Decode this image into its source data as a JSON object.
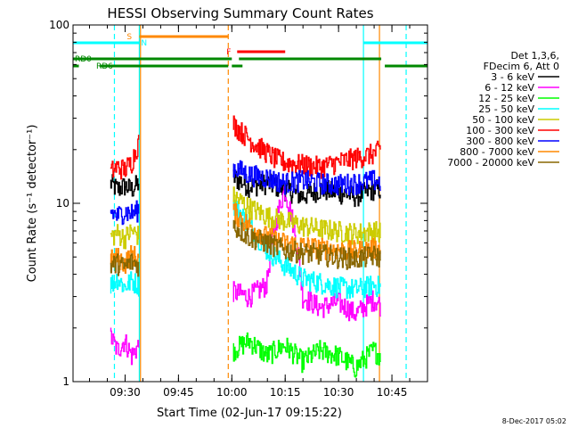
{
  "chart_data": {
    "type": "line",
    "title": "HESSI Observing Summary Count Rates",
    "ylabel": "Count Rate (s⁻¹ detector⁻¹)",
    "xlabel": "Start Time (02-Jun-17 09:15:22)",
    "y_scale": "log",
    "ylim": [
      1,
      100
    ],
    "xlim": [
      "09:15:22",
      "10:55:00"
    ],
    "x_ticks": [
      "09:30",
      "09:45",
      "10:00",
      "10:15",
      "10:30",
      "10:45"
    ],
    "y_ticks": [
      "1",
      "10",
      "100"
    ],
    "timestamp": "8-Dec-2017 05:02",
    "legend": {
      "placement": "right",
      "header": [
        "Det 1,3,6,",
        "FDecim 6, Att 0"
      ],
      "entries": [
        {
          "label": "3 - 6 keV",
          "color": "#000000"
        },
        {
          "label": "6 - 12 keV",
          "color": "#ff00ff"
        },
        {
          "label": "12 - 25 keV",
          "color": "#00ff00"
        },
        {
          "label": "25 - 50 keV",
          "color": "#00ffff"
        },
        {
          "label": "50 - 100 keV",
          "color": "#cccc00"
        },
        {
          "label": "100 - 300 keV",
          "color": "#ff0000"
        },
        {
          "label": "300 - 800 keV",
          "color": "#0000ff"
        },
        {
          "label": "800 - 7000 keV",
          "color": "#ff8800"
        },
        {
          "label": "7000 - 20000 keV",
          "color": "#886600"
        }
      ]
    },
    "flags": [
      {
        "label": "S",
        "color": "#ff8800",
        "segments": [
          [
            "09:34:00",
            "09:59:00"
          ]
        ]
      },
      {
        "label": "N",
        "color": "#00ffff",
        "segments": [
          [
            "09:15:22",
            "09:34:00"
          ],
          [
            "10:37:00",
            "10:55:00"
          ]
        ]
      },
      {
        "label": "F",
        "color": "#ff0000",
        "segments": [
          [
            "10:01:30",
            "10:15:00"
          ]
        ]
      },
      {
        "label": "RD0",
        "color": "#008800",
        "segments": [
          [
            "09:15:22",
            "10:00:00"
          ],
          [
            "10:02:00",
            "10:42:00"
          ]
        ]
      },
      {
        "label": "RD6",
        "color": "#008800",
        "segments": [
          [
            "09:15:22",
            "09:17:00"
          ],
          [
            "09:23:00",
            "09:59:00"
          ],
          [
            "10:00:00",
            "10:03:00"
          ],
          [
            "10:43:00",
            "10:55:00"
          ]
        ]
      }
    ],
    "markers": [
      {
        "time": "09:27:00",
        "color": "#00ffff",
        "style": "dashed"
      },
      {
        "time": "09:34:00",
        "color": "#00ffff",
        "style": "solid"
      },
      {
        "time": "09:34:20",
        "color": "#ff8800",
        "style": "solid"
      },
      {
        "time": "09:59:00",
        "color": "#ff8800",
        "style": "dashed"
      },
      {
        "time": "10:37:00",
        "color": "#00ffff",
        "style": "solid"
      },
      {
        "time": "10:41:30",
        "color": "#ff8800",
        "style": "solid"
      },
      {
        "time": "10:49:00",
        "color": "#00ffff",
        "style": "dashed"
      }
    ],
    "series": [
      {
        "name": "3 - 6 keV",
        "color": "#000000",
        "segments": [
          {
            "t": [
              "09:26:00",
              "09:28:00",
              "09:30:00",
              "09:32:00",
              "09:34:00"
            ],
            "y": [
              13,
              12,
              12.5,
              12,
              13
            ]
          },
          {
            "t": [
              "10:00:30",
              "10:05:00",
              "10:10:00",
              "10:15:00",
              "10:20:00",
              "10:25:00",
              "10:30:00",
              "10:35:00",
              "10:40:00",
              "10:42:00"
            ],
            "y": [
              14,
              12.5,
              13,
              12,
              11,
              12,
              11.5,
              11,
              12,
              12
            ]
          }
        ]
      },
      {
        "name": "6 - 12 keV",
        "color": "#ff00ff",
        "segments": [
          {
            "t": [
              "09:26:00",
              "09:28:00",
              "09:30:00",
              "09:32:00",
              "09:34:00"
            ],
            "y": [
              1.8,
              1.5,
              1.7,
              1.4,
              1.6
            ]
          },
          {
            "t": [
              "10:00:30",
              "10:05:00",
              "10:10:00",
              "10:15:00",
              "10:20:00",
              "10:25:00",
              "10:30:00",
              "10:35:00",
              "10:40:00",
              "10:42:00"
            ],
            "y": [
              3.2,
              3.0,
              3.5,
              12,
              3.0,
              2.6,
              2.8,
              2.4,
              2.9,
              2.7
            ]
          }
        ]
      },
      {
        "name": "12 - 25 keV",
        "color": "#00ff00",
        "segments": [
          {
            "t": [
              "10:00:30",
              "10:05:00",
              "10:10:00",
              "10:15:00",
              "10:20:00",
              "10:25:00",
              "10:30:00",
              "10:35:00",
              "10:40:00",
              "10:42:00"
            ],
            "y": [
              1.5,
              1.7,
              1.4,
              1.6,
              1.3,
              1.5,
              1.4,
              1.2,
              1.5,
              1.4
            ]
          }
        ]
      },
      {
        "name": "25 - 50 keV",
        "color": "#00ffff",
        "segments": [
          {
            "t": [
              "09:26:00",
              "09:28:00",
              "09:30:00",
              "09:32:00",
              "09:34:00"
            ],
            "y": [
              3.5,
              3.8,
              3.4,
              3.7,
              3.5
            ]
          },
          {
            "t": [
              "10:00:30",
              "10:05:00",
              "10:10:00",
              "10:15:00",
              "10:20:00",
              "10:25:00",
              "10:30:00",
              "10:35:00",
              "10:40:00",
              "10:42:00"
            ],
            "y": [
              10,
              7.5,
              5.5,
              4.5,
              3.8,
              3.6,
              3.4,
              3.3,
              3.5,
              3.4
            ]
          }
        ]
      },
      {
        "name": "50 - 100 keV",
        "color": "#cccc00",
        "segments": [
          {
            "t": [
              "09:26:00",
              "09:28:00",
              "09:30:00",
              "09:32:00",
              "09:34:00"
            ],
            "y": [
              6.5,
              6.8,
              6.4,
              7.0,
              6.6
            ]
          },
          {
            "t": [
              "10:00:30",
              "10:05:00",
              "10:10:00",
              "10:15:00",
              "10:20:00",
              "10:25:00",
              "10:30:00",
              "10:35:00",
              "10:40:00",
              "10:42:00"
            ],
            "y": [
              11,
              9.5,
              8.5,
              8.0,
              7.5,
              7.2,
              7.0,
              6.8,
              7.0,
              6.9
            ]
          }
        ]
      },
      {
        "name": "100 - 300 keV",
        "color": "#ff0000",
        "segments": [
          {
            "t": [
              "09:26:00",
              "09:28:00",
              "09:30:00",
              "09:32:00",
              "09:34:00"
            ],
            "y": [
              15,
              16,
              15.5,
              17,
              22
            ]
          },
          {
            "t": [
              "10:00:30",
              "10:03:00",
              "10:06:00",
              "10:09:00",
              "10:12:00",
              "10:15:00",
              "10:20:00",
              "10:25:00",
              "10:30:00",
              "10:35:00",
              "10:40:00",
              "10:42:00"
            ],
            "y": [
              28,
              25,
              22,
              20,
              18,
              17,
              16.5,
              16,
              17,
              18,
              19,
              20
            ]
          }
        ]
      },
      {
        "name": "300 - 800 keV",
        "color": "#0000ff",
        "segments": [
          {
            "t": [
              "09:26:00",
              "09:28:00",
              "09:30:00",
              "09:32:00",
              "09:34:00"
            ],
            "y": [
              9,
              8.5,
              9,
              8.8,
              9.2
            ]
          },
          {
            "t": [
              "10:00:30",
              "10:05:00",
              "10:10:00",
              "10:15:00",
              "10:20:00",
              "10:25:00",
              "10:30:00",
              "10:35:00",
              "10:40:00",
              "10:42:00"
            ],
            "y": [
              16,
              14.5,
              14,
              13,
              13.5,
              13,
              12.8,
              13,
              13.5,
              13.2
            ]
          }
        ]
      },
      {
        "name": "800 - 7000 keV",
        "color": "#ff8800",
        "segments": [
          {
            "t": [
              "09:26:00",
              "09:28:00",
              "09:30:00",
              "09:32:00",
              "09:34:00"
            ],
            "y": [
              4.8,
              5.0,
              4.6,
              5.2,
              4.9
            ]
          },
          {
            "t": [
              "10:00:30",
              "10:05:00",
              "10:10:00",
              "10:15:00",
              "10:20:00",
              "10:25:00",
              "10:30:00",
              "10:35:00",
              "10:40:00",
              "10:42:00"
            ],
            "y": [
              9,
              7.5,
              6.5,
              6.0,
              5.8,
              5.6,
              5.5,
              5.4,
              5.6,
              5.5
            ]
          }
        ]
      },
      {
        "name": "7000 - 20000 keV",
        "color": "#886600",
        "segments": [
          {
            "t": [
              "09:26:00",
              "09:28:00",
              "09:30:00",
              "09:32:00",
              "09:34:00"
            ],
            "y": [
              4.5,
              4.6,
              4.4,
              4.7,
              4.5
            ]
          },
          {
            "t": [
              "10:00:30",
              "10:05:00",
              "10:10:00",
              "10:15:00",
              "10:20:00",
              "10:25:00",
              "10:30:00",
              "10:35:00",
              "10:40:00",
              "10:42:00"
            ],
            "y": [
              7.5,
              6.5,
              6.0,
              5.5,
              5.3,
              5.2,
              5.0,
              4.9,
              5.1,
              5.0
            ]
          }
        ]
      }
    ]
  }
}
